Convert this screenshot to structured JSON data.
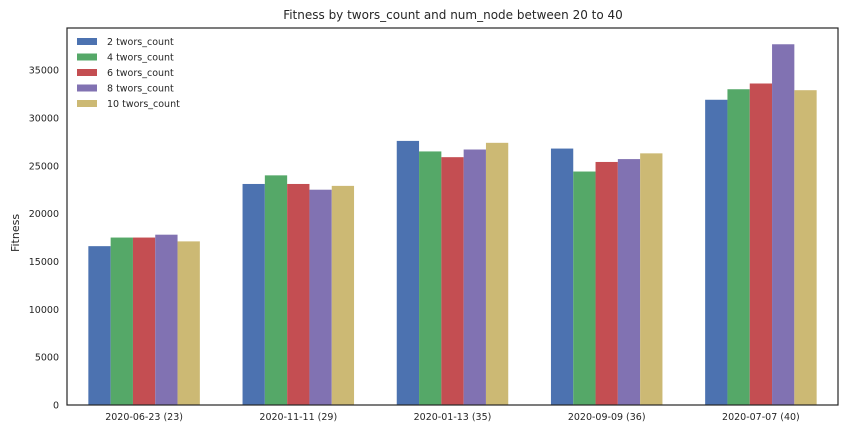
{
  "chart_data": {
    "type": "bar",
    "title": "Fitness by twors_count and num_node between 20 to 40",
    "xlabel": "",
    "ylabel": "Fitness",
    "ylim": [
      0,
      39400
    ],
    "yticks": [
      0,
      5000,
      10000,
      15000,
      20000,
      25000,
      30000,
      35000
    ],
    "categories": [
      "2020-06-23 (23)",
      "2020-11-11 (29)",
      "2020-01-13 (35)",
      "2020-09-09 (36)",
      "2020-07-07 (40)"
    ],
    "grid": false,
    "legend_position": "top-left",
    "series": [
      {
        "name": "2 twors_count",
        "color": "#4c72b0",
        "values": [
          16600,
          23100,
          27600,
          26800,
          31900
        ]
      },
      {
        "name": "4 twors_count",
        "color": "#55a868",
        "values": [
          17500,
          24000,
          26500,
          24400,
          33000
        ]
      },
      {
        "name": "6 twors_count",
        "color": "#c44e52",
        "values": [
          17500,
          23100,
          25900,
          25400,
          33600
        ]
      },
      {
        "name": "8 twors_count",
        "color": "#8172b2",
        "values": [
          17800,
          22500,
          26700,
          25700,
          37700
        ]
      },
      {
        "name": "10 twors_count",
        "color": "#ccb974",
        "values": [
          17100,
          22900,
          27400,
          26300,
          32900
        ]
      }
    ]
  }
}
